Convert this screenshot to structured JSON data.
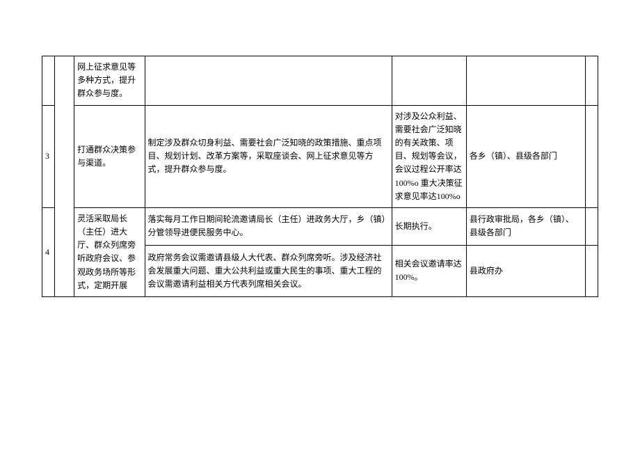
{
  "rows": [
    {
      "idx": "",
      "id_rowspan": 1,
      "cells": {
        "c2": "",
        "c3": "网上征求意见等多种方式，提升群众参与度。",
        "c4": "",
        "c5": "",
        "c6": "",
        "c7": ""
      }
    },
    {
      "idx": "3",
      "id_rowspan": 1,
      "cells": {
        "c2": "",
        "c3": "打通群众决策参与渠道。",
        "c4": "制定涉及群众切身利益、需要社会广泛知晓的政策措施、重点项目、规划计划、改革方案等，采取座谈会、网上征求意见等方式，提升群众参与度。",
        "c5": "对涉及公众利益、需要社会广泛知晓的有关政策、项目、规划等会议，会议过程公开率达100%o 重大决策征求意见率达100%o",
        "c6": "各乡（镇）、县级各部门",
        "c7": ""
      }
    },
    {
      "idx": "4",
      "id_rowspan": 2,
      "cells": {
        "c2": "",
        "c3": "灵活采取局长（主任）进大厅、群众列席旁听政府会议、参观政务场所等形式，定期开展",
        "c4": "落实每月工作日期间轮流邀请局长（主任）进政务大厅，乡（镇）分管领导进便民服务中心。",
        "c5": "长期执行。",
        "c6": "县行政审批局，各乡（镇）、县级各部门",
        "c7": ""
      },
      "subrow": {
        "c4": "政府常务会议需邀请县级人大代表、群众列席旁听。涉及经济社会发展重大问题、重大公共利益或重大民生的事项、重大工程的会议需邀请利益相关方代表列席相关会议。",
        "c5": "相关会议邀请率达 100%。",
        "c6": "县政府办",
        "c7": ""
      }
    }
  ]
}
